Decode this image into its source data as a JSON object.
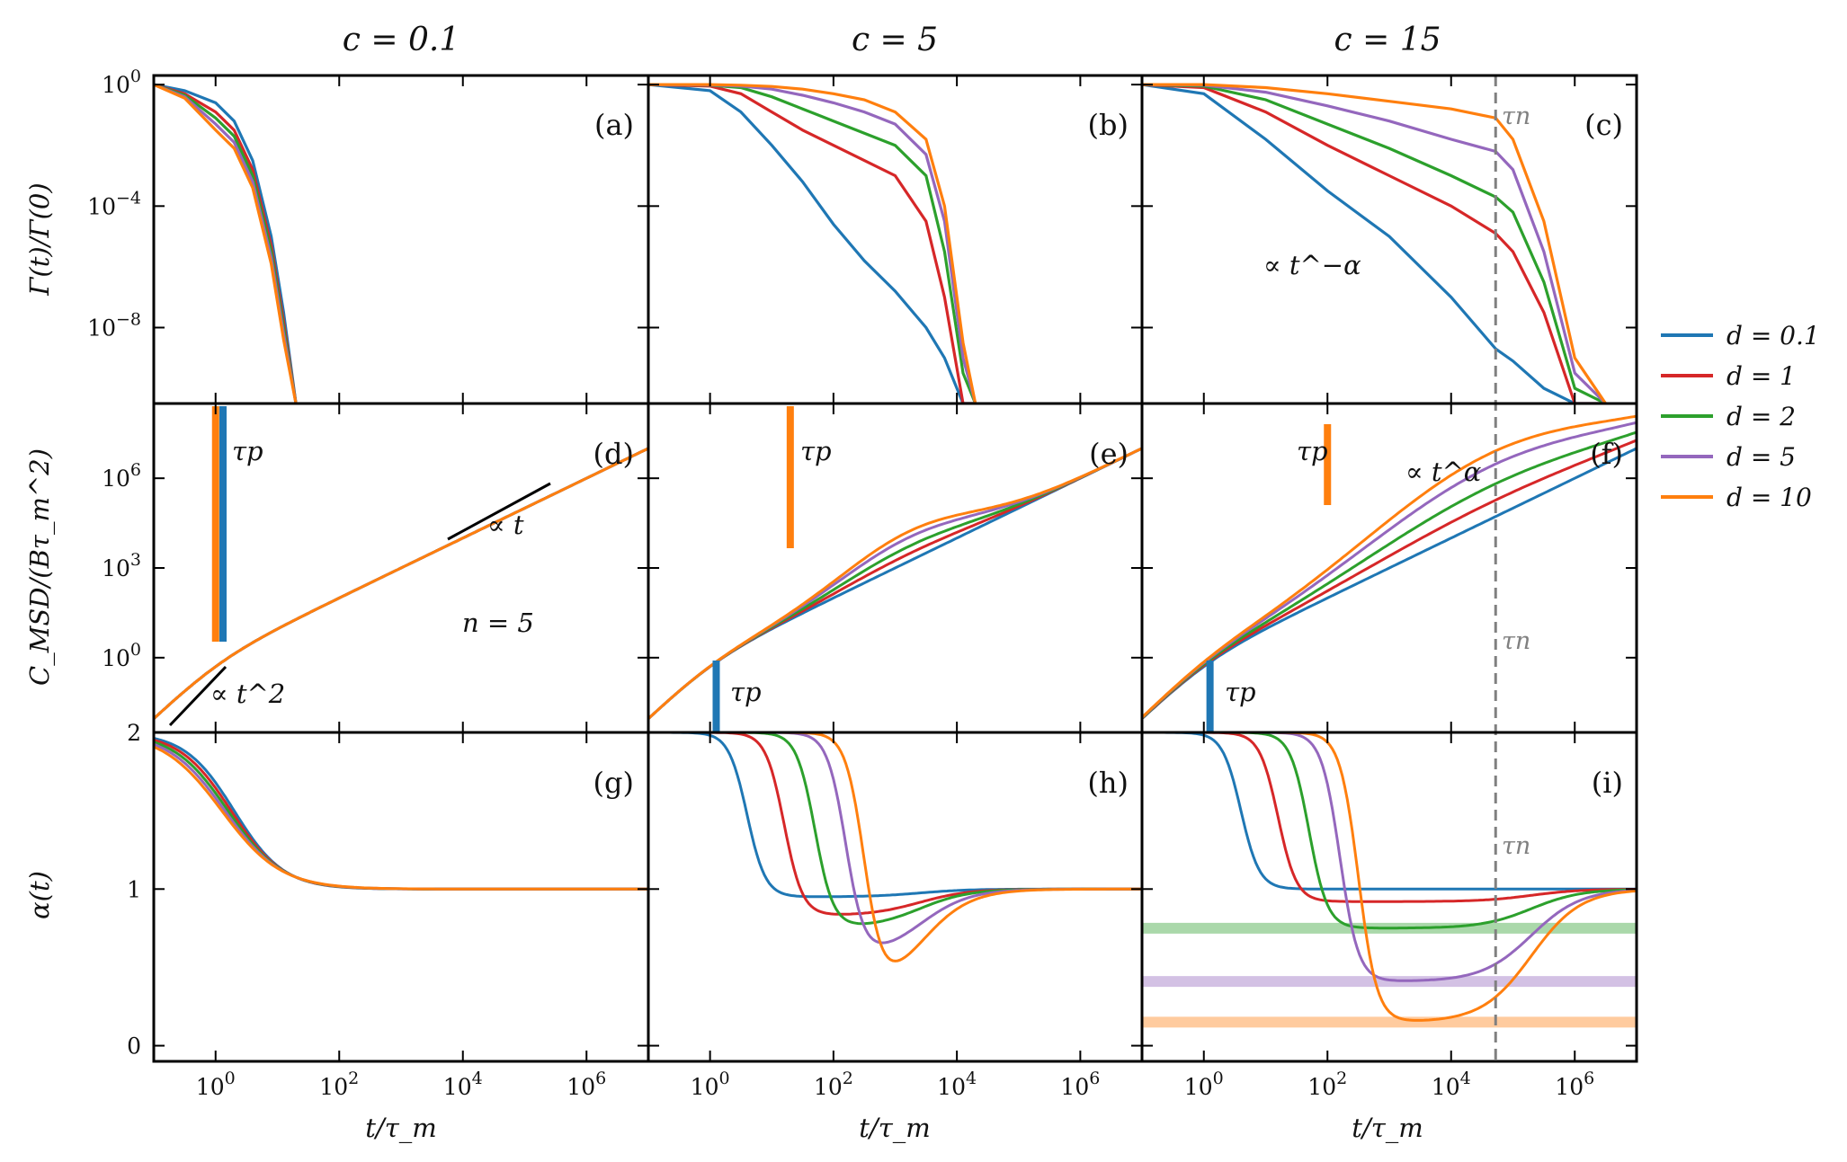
{
  "chart_data": {
    "type": "line",
    "columns": [
      {
        "title": "c = 0.1",
        "c": 0.1
      },
      {
        "title": "c = 5",
        "c": 5
      },
      {
        "title": "c = 15",
        "c": 15
      }
    ],
    "rows": [
      {
        "ylabel": "Γ(t)/Γ(0)",
        "scale": "log",
        "ylim_log10": [
          -10.5,
          0.3
        ],
        "yticks_log10": [
          0,
          -4,
          -8
        ],
        "yticklabels": [
          "10^0",
          "10^-4",
          "10^-8"
        ]
      },
      {
        "ylabel": "C_MSD/(Bτ_m^2)",
        "scale": "log",
        "ylim_log10": [
          -2.5,
          8.5
        ],
        "yticks_log10": [
          0,
          3,
          6
        ],
        "yticklabels": [
          "10^0",
          "10^3",
          "10^6"
        ]
      },
      {
        "ylabel": "α(t)",
        "scale": "linear",
        "ylim": [
          -0.1,
          2.0
        ],
        "yticks": [
          0,
          1,
          2
        ],
        "yticklabels": [
          "0",
          "1",
          "2"
        ]
      }
    ],
    "xlabel": "t/τ_m",
    "x_scale": "log",
    "xlim_log10": [
      -1,
      7
    ],
    "xticks_log10": [
      0,
      2,
      4,
      6
    ],
    "xticklabels": [
      "10^0",
      "10^2",
      "10^4",
      "10^6"
    ],
    "panel_labels": [
      "(a)",
      "(b)",
      "(c)",
      "(d)",
      "(e)",
      "(f)",
      "(g)",
      "(h)",
      "(i)"
    ],
    "legend": {
      "placement": "right",
      "entries": [
        {
          "label": "d = 0.1",
          "color": "#1f77b4"
        },
        {
          "label": "d = 1",
          "color": "#d62728"
        },
        {
          "label": "d = 2",
          "color": "#2ca02c"
        },
        {
          "label": "d = 5",
          "color": "#9467bd"
        },
        {
          "label": "d = 10",
          "color": "#ff7f0e"
        }
      ]
    },
    "annotations": {
      "gamma_power_law": "∝ t^−α",
      "msd_power_law": "∝ t^α",
      "msd_linear": "∝ t",
      "msd_ballistic": "∝ t^2",
      "n_value": "n = 5",
      "tau_p": "τp",
      "tau_n": "τn",
      "tau_n_log10": 4.72
    },
    "tau_p_log10": {
      "c0.1": {
        "d=0.1": 0.12,
        "d=10": 0.0
      },
      "c5": {
        "d=0.1": 0.1,
        "d=10": 1.3
      },
      "c15": {
        "d=0.1": 0.1,
        "d=10": 2.0
      }
    },
    "alpha_plateaus": {
      "d=2": 0.75,
      "d=5": 0.41,
      "d=10": 0.15
    },
    "series_log10_gamma": {
      "c0.1": {
        "x": [
          -1,
          -0.5,
          0,
          0.3,
          0.6,
          0.9,
          1.1,
          1.3
        ],
        "d=0.1": [
          0,
          -0.2,
          -0.6,
          -1.2,
          -2.5,
          -5.0,
          -7.5,
          -10.5
        ],
        "d=1": [
          0,
          -0.3,
          -0.9,
          -1.5,
          -2.8,
          -5.3,
          -7.8,
          -10.5
        ],
        "d=2": [
          0,
          -0.35,
          -1.1,
          -1.7,
          -3.0,
          -5.5,
          -8.0,
          -10.5
        ],
        "d=5": [
          0,
          -0.4,
          -1.3,
          -1.9,
          -3.2,
          -5.7,
          -8.2,
          -10.5
        ],
        "d=10": [
          0,
          -0.45,
          -1.5,
          -2.1,
          -3.4,
          -5.9,
          -8.4,
          -10.5
        ]
      },
      "c5": {
        "x": [
          -1,
          0,
          0.5,
          1,
          1.5,
          2,
          2.5,
          3,
          3.5,
          3.8,
          4.1,
          4.3
        ],
        "d=0.1": [
          0,
          -0.2,
          -0.9,
          -2.0,
          -3.2,
          -4.6,
          -5.8,
          -6.8,
          -8.0,
          -9.0,
          -10.5,
          -10.5
        ],
        "d=1": [
          0,
          -0.05,
          -0.3,
          -0.9,
          -1.5,
          -2.0,
          -2.5,
          -3.0,
          -4.5,
          -7.0,
          -10.5,
          -10.5
        ],
        "d=2": [
          0,
          -0.02,
          -0.1,
          -0.4,
          -0.8,
          -1.2,
          -1.6,
          -2.0,
          -3.0,
          -5.5,
          -9.5,
          -10.5
        ],
        "d=5": [
          0,
          -0.01,
          -0.05,
          -0.15,
          -0.35,
          -0.6,
          -0.9,
          -1.3,
          -2.3,
          -4.5,
          -9.0,
          -10.5
        ],
        "d=10": [
          0,
          0,
          -0.02,
          -0.06,
          -0.15,
          -0.3,
          -0.5,
          -0.9,
          -1.8,
          -4.0,
          -8.5,
          -10.5
        ]
      },
      "c15": {
        "x": [
          -1,
          0,
          1,
          2,
          3,
          4,
          4.72,
          5,
          5.5,
          6,
          6.5
        ],
        "d=0.1": [
          0,
          -0.3,
          -1.8,
          -3.5,
          -5.0,
          -7.0,
          -8.7,
          -9.1,
          -10.0,
          -10.5,
          -10.5
        ],
        "d=1": [
          0,
          -0.1,
          -0.9,
          -2.0,
          -3.0,
          -4.0,
          -4.9,
          -5.5,
          -7.5,
          -10.5,
          -10.5
        ],
        "d=2": [
          0,
          -0.05,
          -0.5,
          -1.3,
          -2.1,
          -3.0,
          -3.7,
          -4.2,
          -6.5,
          -10.0,
          -10.5
        ],
        "d=5": [
          0,
          -0.02,
          -0.25,
          -0.7,
          -1.2,
          -1.8,
          -2.2,
          -2.8,
          -5.5,
          -9.5,
          -10.5
        ],
        "d=10": [
          0,
          0,
          -0.1,
          -0.3,
          -0.55,
          -0.8,
          -1.1,
          -1.8,
          -4.5,
          -9.0,
          -10.5
        ]
      }
    }
  }
}
